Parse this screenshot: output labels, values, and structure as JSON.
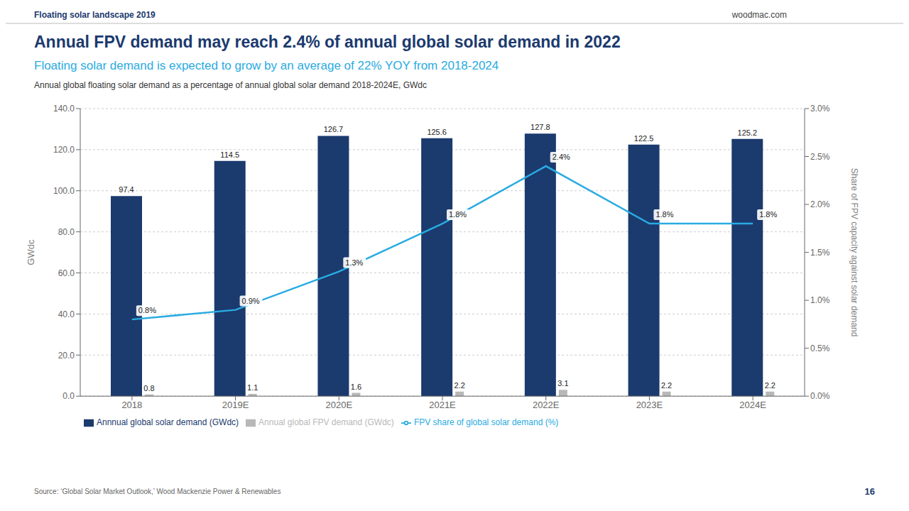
{
  "chart_data": {
    "type": "bar",
    "title": "Annual FPV demand may reach 2.4% of annual global solar demand in 2022",
    "subtitle": "Floating solar demand is expected to grow by an average of 22% YOY from 2018-2024",
    "annotations": [
      "Floating solar landscape 2019",
      "woodmac.com",
      "Annual global floating solar demand as a percentage of annual global solar demand 2018-2024E, GWdc",
      "Source: ‘Global Solar Market Outlook,’ Wood Mackenzie Power & Renewables",
      "16"
    ],
    "ylabel": "GWdc",
    "y2label": "Share of FPV capacity against solar demand",
    "categories": [
      "2018",
      "2019E",
      "2020E",
      "2021E",
      "2022E",
      "2023E",
      "2024E"
    ],
    "series": [
      {
        "name": "Annnual global solar demand (GWdc)",
        "type": "bar",
        "color": "#1b3a6e",
        "values": [
          97.4,
          114.5,
          126.7,
          125.6,
          127.8,
          122.5,
          125.2
        ]
      },
      {
        "name": "Annual global FPV demand (GWdc)",
        "type": "bar",
        "color": "#b8b8b8",
        "values": [
          0.8,
          1.1,
          1.6,
          2.2,
          3.1,
          2.2,
          2.2
        ]
      },
      {
        "name": "FPV share of global solar demand (%)",
        "type": "line",
        "axis": "y2",
        "color": "#29abe2",
        "values": [
          0.008,
          0.009,
          0.013,
          0.018,
          0.024,
          0.018,
          0.018
        ],
        "value_labels": [
          "0.8%",
          "0.9%",
          "1.3%",
          "1.8%",
          "2.4%",
          "1.8%",
          "1.8%"
        ]
      }
    ],
    "ylim": [
      0,
      140
    ],
    "yticks": [
      {
        "value": 0,
        "label": "0.0"
      },
      {
        "value": 20,
        "label": "20.0"
      },
      {
        "value": 40,
        "label": "40.0"
      },
      {
        "value": 60,
        "label": "60.0"
      },
      {
        "value": 80,
        "label": "80.0"
      },
      {
        "value": 100,
        "label": "100.0"
      },
      {
        "value": 120,
        "label": "120.0"
      },
      {
        "value": 140,
        "label": "140.0"
      }
    ],
    "y2lim": [
      0,
      0.03
    ],
    "y2ticks": [
      {
        "value": 0.0,
        "label": "0.0%"
      },
      {
        "value": 0.005,
        "label": "0.5%"
      },
      {
        "value": 0.01,
        "label": "1.0%"
      },
      {
        "value": 0.015,
        "label": "1.5%"
      },
      {
        "value": 0.02,
        "label": "2.0%"
      },
      {
        "value": 0.025,
        "label": "2.5%"
      },
      {
        "value": 0.03,
        "label": "3.0%"
      }
    ],
    "grid": true,
    "legend": "bottom",
    "data_labels": true
  }
}
